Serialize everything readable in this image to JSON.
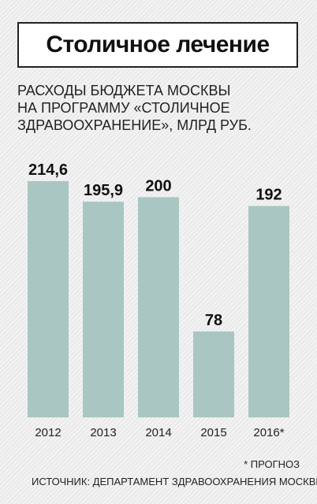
{
  "chart_data": {
    "type": "bar",
    "title": "Столичное лечение",
    "subtitle": [
      "РАСХОДЫ БЮДЖЕТА МОСКВЫ",
      "НА ПРОГРАММУ «СТОЛИЧНОЕ",
      "ЗДРАВООХРАНЕНИЕ», МЛРД РУБ."
    ],
    "categories": [
      "2012",
      "2013",
      "2014",
      "2015",
      "2016*"
    ],
    "values": [
      214.6,
      195.9,
      200,
      78,
      192
    ],
    "value_labels": [
      "214,6",
      "195,9",
      "200",
      "78",
      "192"
    ],
    "color": "#a9c6c2",
    "note": "* ПРОГНОЗ",
    "source": "ИСТОЧНИК: ДЕПАРТАМЕНТ ЗДРАВООХРАНЕНИЯ МОСКВЫ"
  }
}
